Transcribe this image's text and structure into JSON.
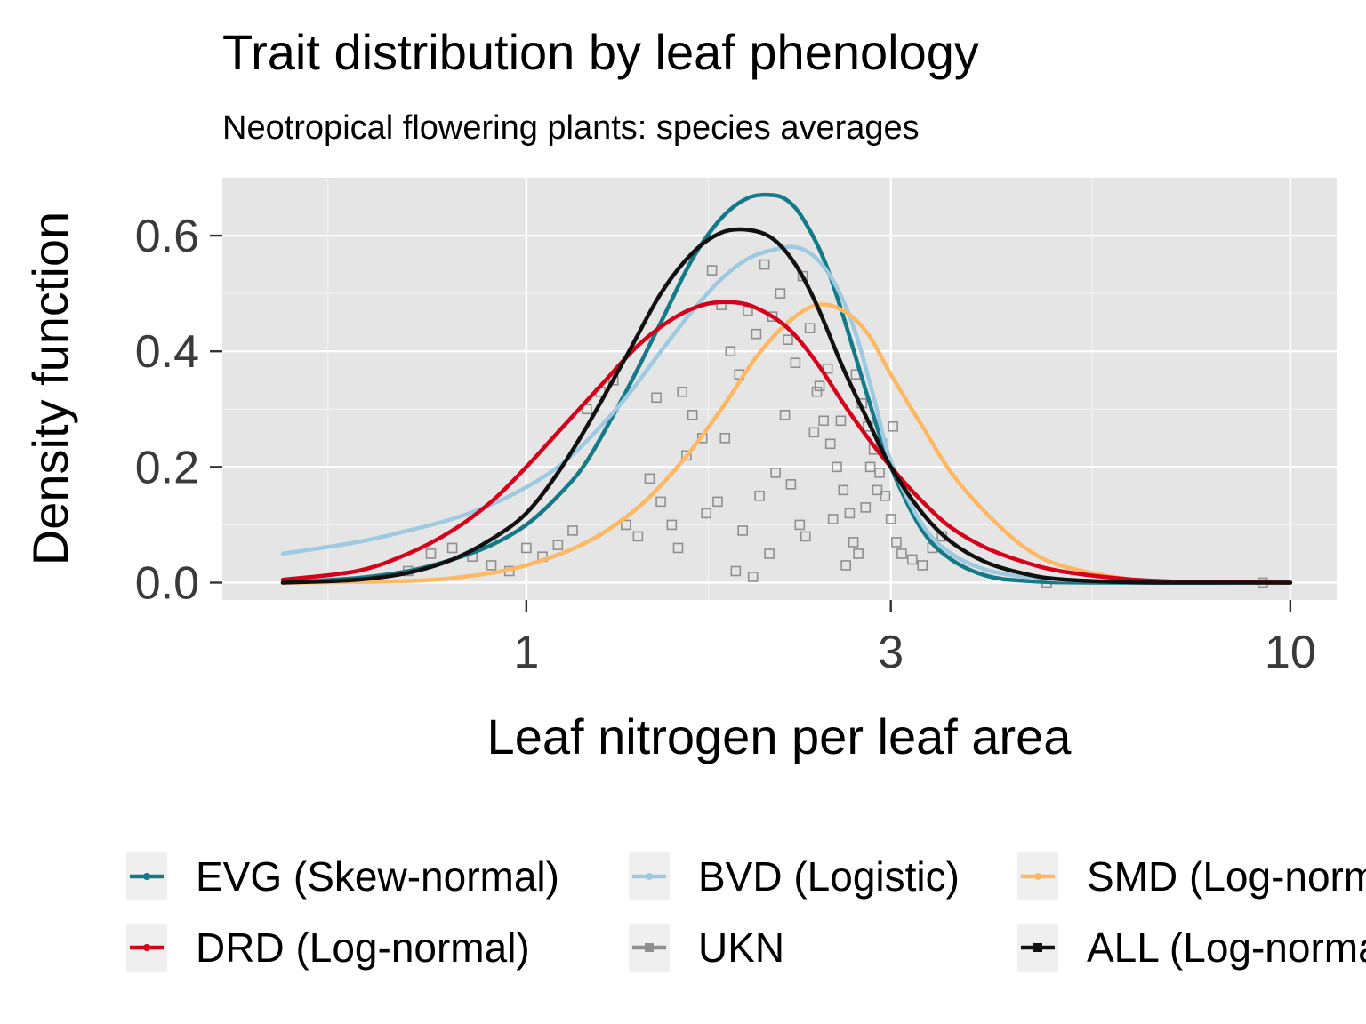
{
  "chart_data": {
    "type": "line",
    "title": "Trait distribution by leaf phenology",
    "subtitle": "Neotropical flowering plants: species averages",
    "xlabel": "Leaf nitrogen per leaf area",
    "ylabel": "Density function",
    "x_scale": "log10",
    "xlim": [
      0.4,
      11.5
    ],
    "ylim": [
      -0.03,
      0.7
    ],
    "x_ticks": [
      1,
      3,
      10
    ],
    "x_tick_labels": [
      "1",
      "3",
      "10"
    ],
    "x_minor_ticks": [
      0.55,
      1.73,
      5.5
    ],
    "y_ticks": [
      0.0,
      0.2,
      0.4,
      0.6
    ],
    "y_tick_labels": [
      "0.0",
      "0.2",
      "0.4",
      "0.6"
    ],
    "y_minor_ticks": [
      0.1,
      0.3,
      0.5
    ],
    "grid": true,
    "legend_position": "bottom",
    "background": "#e5e5e5",
    "series": [
      {
        "name": "EVG (Skew-normal)",
        "color": "#147a87",
        "kind": "curve",
        "x": [
          0.48,
          0.6,
          0.7,
          0.8,
          0.9,
          1.0,
          1.1,
          1.2,
          1.35,
          1.5,
          1.65,
          1.8,
          1.95,
          2.1,
          2.2,
          2.3,
          2.45,
          2.6,
          2.8,
          3.0,
          3.3,
          3.6,
          4.0,
          4.5,
          5.5,
          10.0
        ],
        "y": [
          0.0,
          0.008,
          0.02,
          0.04,
          0.065,
          0.1,
          0.15,
          0.21,
          0.33,
          0.45,
          0.56,
          0.63,
          0.665,
          0.67,
          0.66,
          0.63,
          0.56,
          0.46,
          0.32,
          0.2,
          0.09,
          0.04,
          0.012,
          0.003,
          0.0,
          0.0
        ]
      },
      {
        "name": "BVD (Logistic)",
        "color": "#9ecae1",
        "kind": "curve",
        "x": [
          0.48,
          0.6,
          0.7,
          0.8,
          0.9,
          1.0,
          1.1,
          1.2,
          1.35,
          1.5,
          1.65,
          1.8,
          1.95,
          2.1,
          2.25,
          2.4,
          2.55,
          2.7,
          2.85,
          3.0,
          3.3,
          3.6,
          4.0,
          4.5,
          5.0,
          6.0,
          10.0
        ],
        "y": [
          0.05,
          0.07,
          0.09,
          0.11,
          0.135,
          0.165,
          0.2,
          0.245,
          0.32,
          0.4,
          0.47,
          0.525,
          0.56,
          0.575,
          0.58,
          0.56,
          0.51,
          0.43,
          0.32,
          0.21,
          0.1,
          0.05,
          0.022,
          0.01,
          0.005,
          0.002,
          0.0
        ]
      },
      {
        "name": "SMD (Log-normal)",
        "color": "#fdb863",
        "kind": "curve",
        "x": [
          0.48,
          0.7,
          0.85,
          1.0,
          1.2,
          1.4,
          1.6,
          1.8,
          2.0,
          2.2,
          2.4,
          2.6,
          2.8,
          3.0,
          3.3,
          3.6,
          4.0,
          4.5,
          5.0,
          6.0,
          7.0,
          10.0
        ],
        "y": [
          0.0,
          0.003,
          0.012,
          0.03,
          0.07,
          0.13,
          0.21,
          0.3,
          0.39,
          0.45,
          0.48,
          0.47,
          0.43,
          0.36,
          0.27,
          0.19,
          0.12,
          0.06,
          0.03,
          0.008,
          0.002,
          0.0
        ]
      },
      {
        "name": "DRD (Log-normal)",
        "color": "#d7001a",
        "kind": "curve",
        "x": [
          0.48,
          0.6,
          0.7,
          0.8,
          0.9,
          1.0,
          1.1,
          1.25,
          1.4,
          1.55,
          1.7,
          1.85,
          2.0,
          2.2,
          2.4,
          2.6,
          2.8,
          3.0,
          3.3,
          3.6,
          4.0,
          4.5,
          5.0,
          6.0,
          7.0,
          8.0,
          10.0
        ],
        "y": [
          0.005,
          0.02,
          0.05,
          0.09,
          0.14,
          0.2,
          0.26,
          0.34,
          0.41,
          0.455,
          0.48,
          0.485,
          0.475,
          0.44,
          0.38,
          0.31,
          0.25,
          0.2,
          0.14,
          0.095,
          0.06,
          0.035,
          0.02,
          0.007,
          0.002,
          0.001,
          0.0
        ]
      },
      {
        "name": "ALL (Log-normal)",
        "color": "#111111",
        "kind": "curve",
        "x": [
          0.48,
          0.6,
          0.7,
          0.8,
          0.9,
          1.0,
          1.1,
          1.2,
          1.35,
          1.5,
          1.65,
          1.8,
          1.95,
          2.1,
          2.25,
          2.4,
          2.6,
          2.8,
          3.0,
          3.3,
          3.6,
          4.0,
          4.5,
          5.0,
          6.0,
          7.0,
          10.0
        ],
        "y": [
          0.0,
          0.005,
          0.017,
          0.04,
          0.075,
          0.12,
          0.19,
          0.27,
          0.39,
          0.5,
          0.57,
          0.605,
          0.61,
          0.595,
          0.55,
          0.48,
          0.37,
          0.28,
          0.2,
          0.12,
          0.07,
          0.035,
          0.015,
          0.006,
          0.001,
          0.0,
          0.0
        ]
      },
      {
        "name": "UKN",
        "color": "#8f8f8f",
        "kind": "points",
        "x": [
          0.7,
          0.75,
          0.8,
          0.85,
          0.9,
          0.95,
          1.0,
          1.05,
          1.1,
          1.15,
          1.2,
          1.25,
          1.3,
          1.35,
          1.4,
          1.45,
          1.5,
          1.55,
          1.6,
          1.65,
          1.7,
          1.75,
          1.8,
          1.85,
          1.9,
          1.95,
          2.0,
          2.05,
          2.1,
          2.15,
          2.2,
          2.25,
          2.3,
          2.35,
          2.4,
          2.45,
          2.5,
          2.55,
          2.6,
          2.65,
          2.7,
          2.75,
          2.8,
          2.85,
          2.9,
          2.95,
          3.0,
          3.05,
          3.1,
          3.2,
          3.3,
          3.4,
          3.5,
          4.8,
          9.2,
          1.62,
          1.78,
          1.92,
          2.08,
          2.22,
          2.38,
          2.52,
          2.68,
          2.82,
          1.48,
          1.72,
          1.88,
          2.02,
          2.18,
          2.32,
          2.48,
          2.62,
          2.78,
          2.92,
          1.58,
          1.82,
          1.98,
          2.12,
          2.28,
          2.42,
          2.58,
          2.72,
          2.88,
          3.02
        ],
        "y": [
          0.02,
          0.05,
          0.06,
          0.045,
          0.03,
          0.02,
          0.06,
          0.045,
          0.065,
          0.09,
          0.3,
          0.33,
          0.35,
          0.1,
          0.08,
          0.18,
          0.14,
          0.1,
          0.33,
          0.29,
          0.25,
          0.54,
          0.48,
          0.4,
          0.36,
          0.47,
          0.43,
          0.55,
          0.46,
          0.5,
          0.42,
          0.38,
          0.53,
          0.44,
          0.33,
          0.28,
          0.24,
          0.2,
          0.16,
          0.12,
          0.36,
          0.31,
          0.27,
          0.23,
          0.19,
          0.15,
          0.11,
          0.07,
          0.05,
          0.04,
          0.03,
          0.06,
          0.08,
          0.0,
          0.0,
          0.22,
          0.14,
          0.09,
          0.05,
          0.17,
          0.26,
          0.11,
          0.07,
          0.2,
          0.32,
          0.12,
          0.02,
          0.15,
          0.29,
          0.08,
          0.37,
          0.03,
          0.13,
          0.24,
          0.06,
          0.25,
          0.01,
          0.19,
          0.1,
          0.34,
          0.28,
          0.05,
          0.16,
          0.27
        ]
      }
    ],
    "legend": [
      {
        "label": "EVG (Skew-normal)",
        "color": "#147a87",
        "marker": "dot"
      },
      {
        "label": "BVD (Logistic)",
        "color": "#9ecae1",
        "marker": "dot"
      },
      {
        "label": "SMD (Log-normal)",
        "color": "#fdb863",
        "marker": "dot"
      },
      {
        "label": "DRD (Log-normal)",
        "color": "#d7001a",
        "marker": "dot"
      },
      {
        "label": "UKN",
        "color": "#8f8f8f",
        "marker": "square"
      },
      {
        "label": "ALL (Log-normal)",
        "color": "#111111",
        "marker": "square"
      }
    ]
  }
}
